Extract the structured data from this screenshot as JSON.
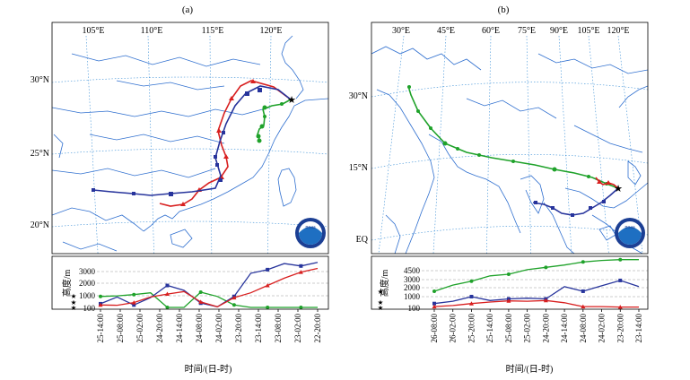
{
  "panels": [
    {
      "id": "a",
      "label": "(a)",
      "lon_labels": [
        "105°E",
        "110°E",
        "115°E",
        "120°E"
      ],
      "lat_labels": [
        "30°N",
        "25°N",
        "20°N"
      ],
      "logo_text": "noaa",
      "y_axis_label": "高度/m",
      "y_ticks": [
        "3000",
        "2000",
        "1000",
        "100"
      ],
      "time_labels": [
        "25-14:00",
        "25-08:00",
        "25-02:00",
        "24-20:00",
        "24-14:00",
        "24-08:00",
        "24-02:00",
        "23-20:00",
        "23-14:00",
        "23-08:00",
        "23-02:00",
        "22-20:00"
      ],
      "x_axis_label": "时间/(日-时)",
      "series_colors": [
        "#d81f1f",
        "#27349c",
        "#1fa22a"
      ],
      "heights_m": {
        "red": [
          300,
          280,
          500,
          950,
          1200,
          1400,
          550,
          150,
          900,
          1300,
          1900,
          2500,
          3000,
          3300
        ],
        "blue": [
          400,
          950,
          300,
          900,
          1900,
          1500,
          450,
          150,
          1000,
          2900,
          3200,
          3700,
          3500,
          3800
        ],
        "green": [
          1000,
          1050,
          1150,
          1300,
          100,
          100,
          1350,
          1000,
          300,
          100,
          100,
          100,
          100,
          100
        ]
      }
    },
    {
      "id": "b",
      "label": "(b)",
      "lon_labels": [
        "30°E",
        "45°E",
        "60°E",
        "75°E",
        "90°E",
        "105°E",
        "120°E"
      ],
      "lat_labels": [
        "30°N",
        "15°N",
        "EQ"
      ],
      "logo_text": "noaa",
      "y_axis_label": "高度/m",
      "y_ticks": [
        "4500",
        "3000",
        "2000",
        "1000",
        "100"
      ],
      "time_labels": [
        "26-08:00",
        "26-02:00",
        "25-20:00",
        "25-14:00",
        "25-08:00",
        "25-02:00",
        "24-20:00",
        "24-14:00",
        "24-08:00",
        "24-02:00",
        "23-20:00",
        "23-14:00"
      ],
      "x_axis_label": "时间/(日-时)",
      "series_colors": [
        "#d81f1f",
        "#27349c",
        "#1fa22a"
      ],
      "heights_m": {
        "red": [
          200,
          350,
          600,
          800,
          950,
          900,
          1000,
          700,
          200,
          200,
          150,
          150
        ],
        "blue": [
          600,
          900,
          1500,
          1000,
          1200,
          1300,
          1200,
          2800,
          2200,
          2900,
          3600,
          2800
        ],
        "green": [
          2200,
          3000,
          3500,
          4200,
          4400,
          5000,
          5300,
          5600,
          6000,
          6200,
          6300,
          6300
        ]
      }
    }
  ]
}
